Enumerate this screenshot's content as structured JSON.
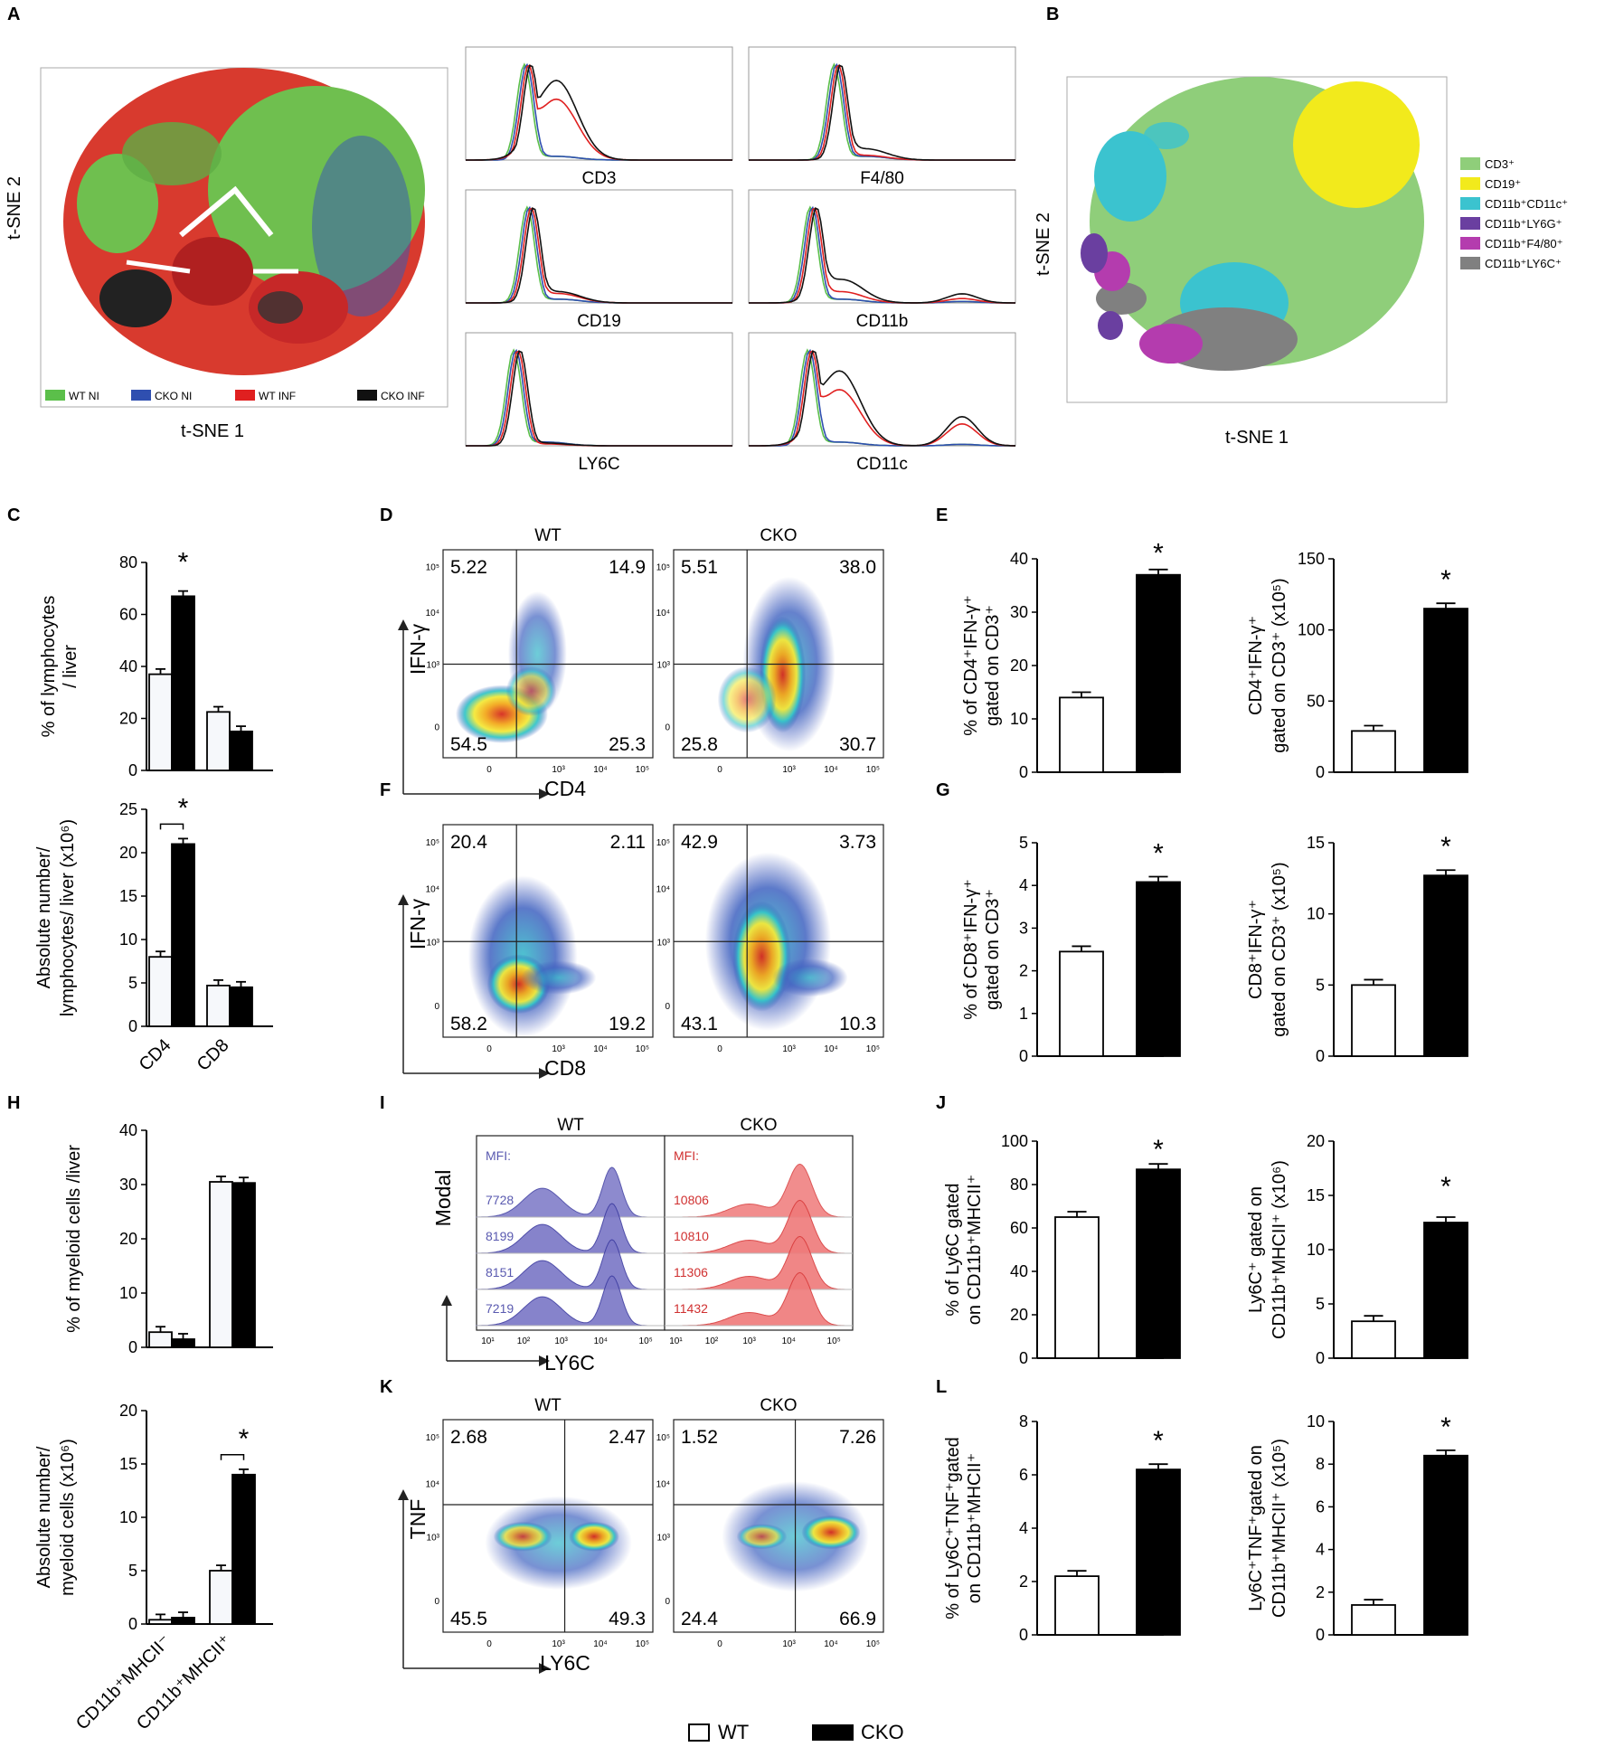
{
  "panel_letters": [
    "A",
    "B",
    "C",
    "D",
    "E",
    "F",
    "G",
    "H",
    "I",
    "J",
    "K",
    "L"
  ],
  "colors": {
    "wt_ni": "#5bbf4a",
    "cko_ni": "#2f4fb0",
    "wt_inf": "#e02020",
    "cko_inf": "#111111",
    "cd3": "#8fce7a",
    "cd19": "#f2ea1c",
    "cd11c": "#3bc3cf",
    "ly6g": "#6a3fa0",
    "f480": "#b43cae",
    "ly6c": "#808080",
    "hist_blue": "#7a76c6",
    "hist_red": "#ef6a6a"
  },
  "panelA": {
    "xlabel": "t-SNE 1",
    "ylabel": "t-SNE 2",
    "legend": [
      "WT NI",
      "CKO NI",
      "WT INF",
      "CKO INF"
    ],
    "histograms": [
      "CD3",
      "F4/80",
      "CD19",
      "CD11b",
      "LY6C",
      "CD11c"
    ]
  },
  "panelB": {
    "xlabel": "t-SNE 1",
    "ylabel": "t-SNE 2",
    "legend": [
      "CD3⁺",
      "CD19⁺",
      "CD11b⁺CD11c⁺",
      "CD11b⁺LY6G⁺",
      "CD11b⁺F4/80⁺",
      "CD11b⁺LY6C⁺"
    ]
  },
  "flowD": {
    "x_axis": "CD4",
    "y_axis": "IFN-γ",
    "groups": [
      "WT",
      "CKO"
    ],
    "quadrants": [
      [
        "5.22",
        "14.9",
        "54.5",
        "25.3"
      ],
      [
        "5.51",
        "38.0",
        "25.8",
        "30.7"
      ]
    ]
  },
  "flowF": {
    "x_axis": "CD8",
    "y_axis": "IFN-γ",
    "quadrants": [
      [
        "20.4",
        "2.11",
        "58.2",
        "19.2"
      ],
      [
        "42.9",
        "3.73",
        "43.1",
        "10.3"
      ]
    ]
  },
  "histI": {
    "x_axis": "LY6C",
    "y_axis": "Modal",
    "groups": [
      "WT",
      "CKO"
    ],
    "mfi_label": "MFI:",
    "wt_mfi": [
      "7728",
      "8199",
      "8151",
      "7219"
    ],
    "cko_mfi": [
      "10806",
      "10810",
      "11306",
      "11432"
    ]
  },
  "flowK": {
    "x_axis": "LY6C",
    "y_axis": "TNF",
    "groups": [
      "WT",
      "CKO"
    ],
    "quadrants": [
      [
        "2.68",
        "2.47",
        "45.5",
        "49.3"
      ],
      [
        "1.52",
        "7.26",
        "24.4",
        "66.9"
      ]
    ]
  },
  "flow_ticks": {
    "y": [
      "10⁵",
      "10⁴",
      "10³",
      "0"
    ],
    "x": [
      "0",
      "10³",
      "10⁴",
      "10⁵"
    ],
    "hx": [
      "10¹",
      "10²",
      "10³",
      "10⁴",
      "10⁵"
    ]
  },
  "legend_bottom": [
    "WT",
    "CKO"
  ],
  "star": "*",
  "chart_data": [
    {
      "id": "C1",
      "type": "bar",
      "categories": [
        "CD4",
        "CD8"
      ],
      "series": [
        {
          "name": "WT",
          "values": [
            37,
            22.5
          ]
        },
        {
          "name": "CKO",
          "values": [
            67,
            15
          ]
        }
      ],
      "ylabel": "% of lymphocytes / liver",
      "ylim": [
        0,
        80
      ],
      "yticks": [
        "0",
        "20",
        "40",
        "60",
        "80"
      ]
    },
    {
      "id": "C2",
      "type": "bar",
      "categories": [
        "CD4",
        "CD8"
      ],
      "series": [
        {
          "name": "WT",
          "values": [
            8,
            4.7
          ]
        },
        {
          "name": "CKO",
          "values": [
            21,
            4.5
          ]
        }
      ],
      "ylabel": "Absolute number/ lymphocytes/ liver (x10⁶)",
      "ylim": [
        0,
        25
      ],
      "yticks": [
        "0",
        "5",
        "10",
        "15",
        "20",
        "25"
      ]
    },
    {
      "id": "E1",
      "type": "bar",
      "categories": [
        "WT",
        "CKO"
      ],
      "values": [
        14,
        37
      ],
      "ylabel": "% of CD4⁺IFN-γ⁺ gated on CD3⁺",
      "ylim": [
        0,
        40
      ],
      "yticks": [
        "0",
        "10",
        "20",
        "30",
        "40"
      ]
    },
    {
      "id": "E2",
      "type": "bar",
      "categories": [
        "WT",
        "CKO"
      ],
      "values": [
        29,
        115
      ],
      "ylabel": "CD4⁺IFN-γ⁺ gated on CD3⁺ (x10⁵)",
      "ylim": [
        0,
        150
      ],
      "yticks": [
        "0",
        "50",
        "100",
        "150"
      ]
    },
    {
      "id": "G1",
      "type": "bar",
      "categories": [
        "WT",
        "CKO"
      ],
      "values": [
        2.45,
        4.08
      ],
      "ylabel": "% of CD8⁺IFN-γ⁺ gated on CD3⁺",
      "ylim": [
        0,
        5
      ],
      "yticks": [
        "0",
        "1",
        "2",
        "3",
        "4",
        "5"
      ]
    },
    {
      "id": "G2",
      "type": "bar",
      "categories": [
        "WT",
        "CKO"
      ],
      "values": [
        5,
        12.7
      ],
      "ylabel": "CD8⁺IFN-γ⁺ gated on CD3⁺ (x10⁵)",
      "ylim": [
        0,
        15
      ],
      "yticks": [
        "0",
        "5",
        "10",
        "15"
      ]
    },
    {
      "id": "H1",
      "type": "bar",
      "categories": [
        "CD11b⁺MHCII⁻",
        "CD11b⁺MHCII⁺"
      ],
      "series": [
        {
          "name": "WT",
          "values": [
            2.8,
            30.5
          ]
        },
        {
          "name": "CKO",
          "values": [
            1.5,
            30.3
          ]
        }
      ],
      "ylabel": "% of myeloid cells /liver",
      "ylim": [
        0,
        40
      ],
      "yticks": [
        "0",
        "10",
        "20",
        "30",
        "40"
      ]
    },
    {
      "id": "H2",
      "type": "bar",
      "categories": [
        "CD11b⁺MHCII⁻",
        "CD11b⁺MHCII⁺"
      ],
      "series": [
        {
          "name": "WT",
          "values": [
            0.4,
            5
          ]
        },
        {
          "name": "CKO",
          "values": [
            0.6,
            14
          ]
        }
      ],
      "ylabel": "Absolute number/ myeloid cells (x10⁶)",
      "ylim": [
        0,
        20
      ],
      "yticks": [
        "0",
        "5",
        "10",
        "15",
        "20"
      ]
    },
    {
      "id": "J1",
      "type": "bar",
      "categories": [
        "WT",
        "CKO"
      ],
      "values": [
        65,
        87
      ],
      "ylabel": "% of Ly6C gated on CD11b⁺MHCII⁺",
      "ylim": [
        0,
        100
      ],
      "yticks": [
        "0",
        "20",
        "40",
        "60",
        "80",
        "100"
      ]
    },
    {
      "id": "J2",
      "type": "bar",
      "categories": [
        "WT",
        "CKO"
      ],
      "values": [
        3.4,
        12.5
      ],
      "ylabel": "Ly6C⁺ gated on CD11b⁺MHCII⁺ (x10⁶)",
      "ylim": [
        0,
        20
      ],
      "yticks": [
        "0",
        "5",
        "10",
        "15",
        "20"
      ]
    },
    {
      "id": "L1",
      "type": "bar",
      "categories": [
        "WT",
        "CKO"
      ],
      "values": [
        2.2,
        6.2
      ],
      "ylabel": "% of Ly6C⁺TNF⁺gated on CD11b⁺MHCII⁺",
      "ylim": [
        0,
        8
      ],
      "yticks": [
        "0",
        "2",
        "4",
        "6",
        "8"
      ]
    },
    {
      "id": "L2",
      "type": "bar",
      "categories": [
        "WT",
        "CKO"
      ],
      "values": [
        1.4,
        8.4
      ],
      "ylabel": "Ly6C⁺TNF⁺gated on CD11b⁺MHCII⁺ (x10⁵)",
      "ylim": [
        0,
        10
      ],
      "yticks": [
        "0",
        "2",
        "4",
        "6",
        "8",
        "10"
      ]
    }
  ]
}
